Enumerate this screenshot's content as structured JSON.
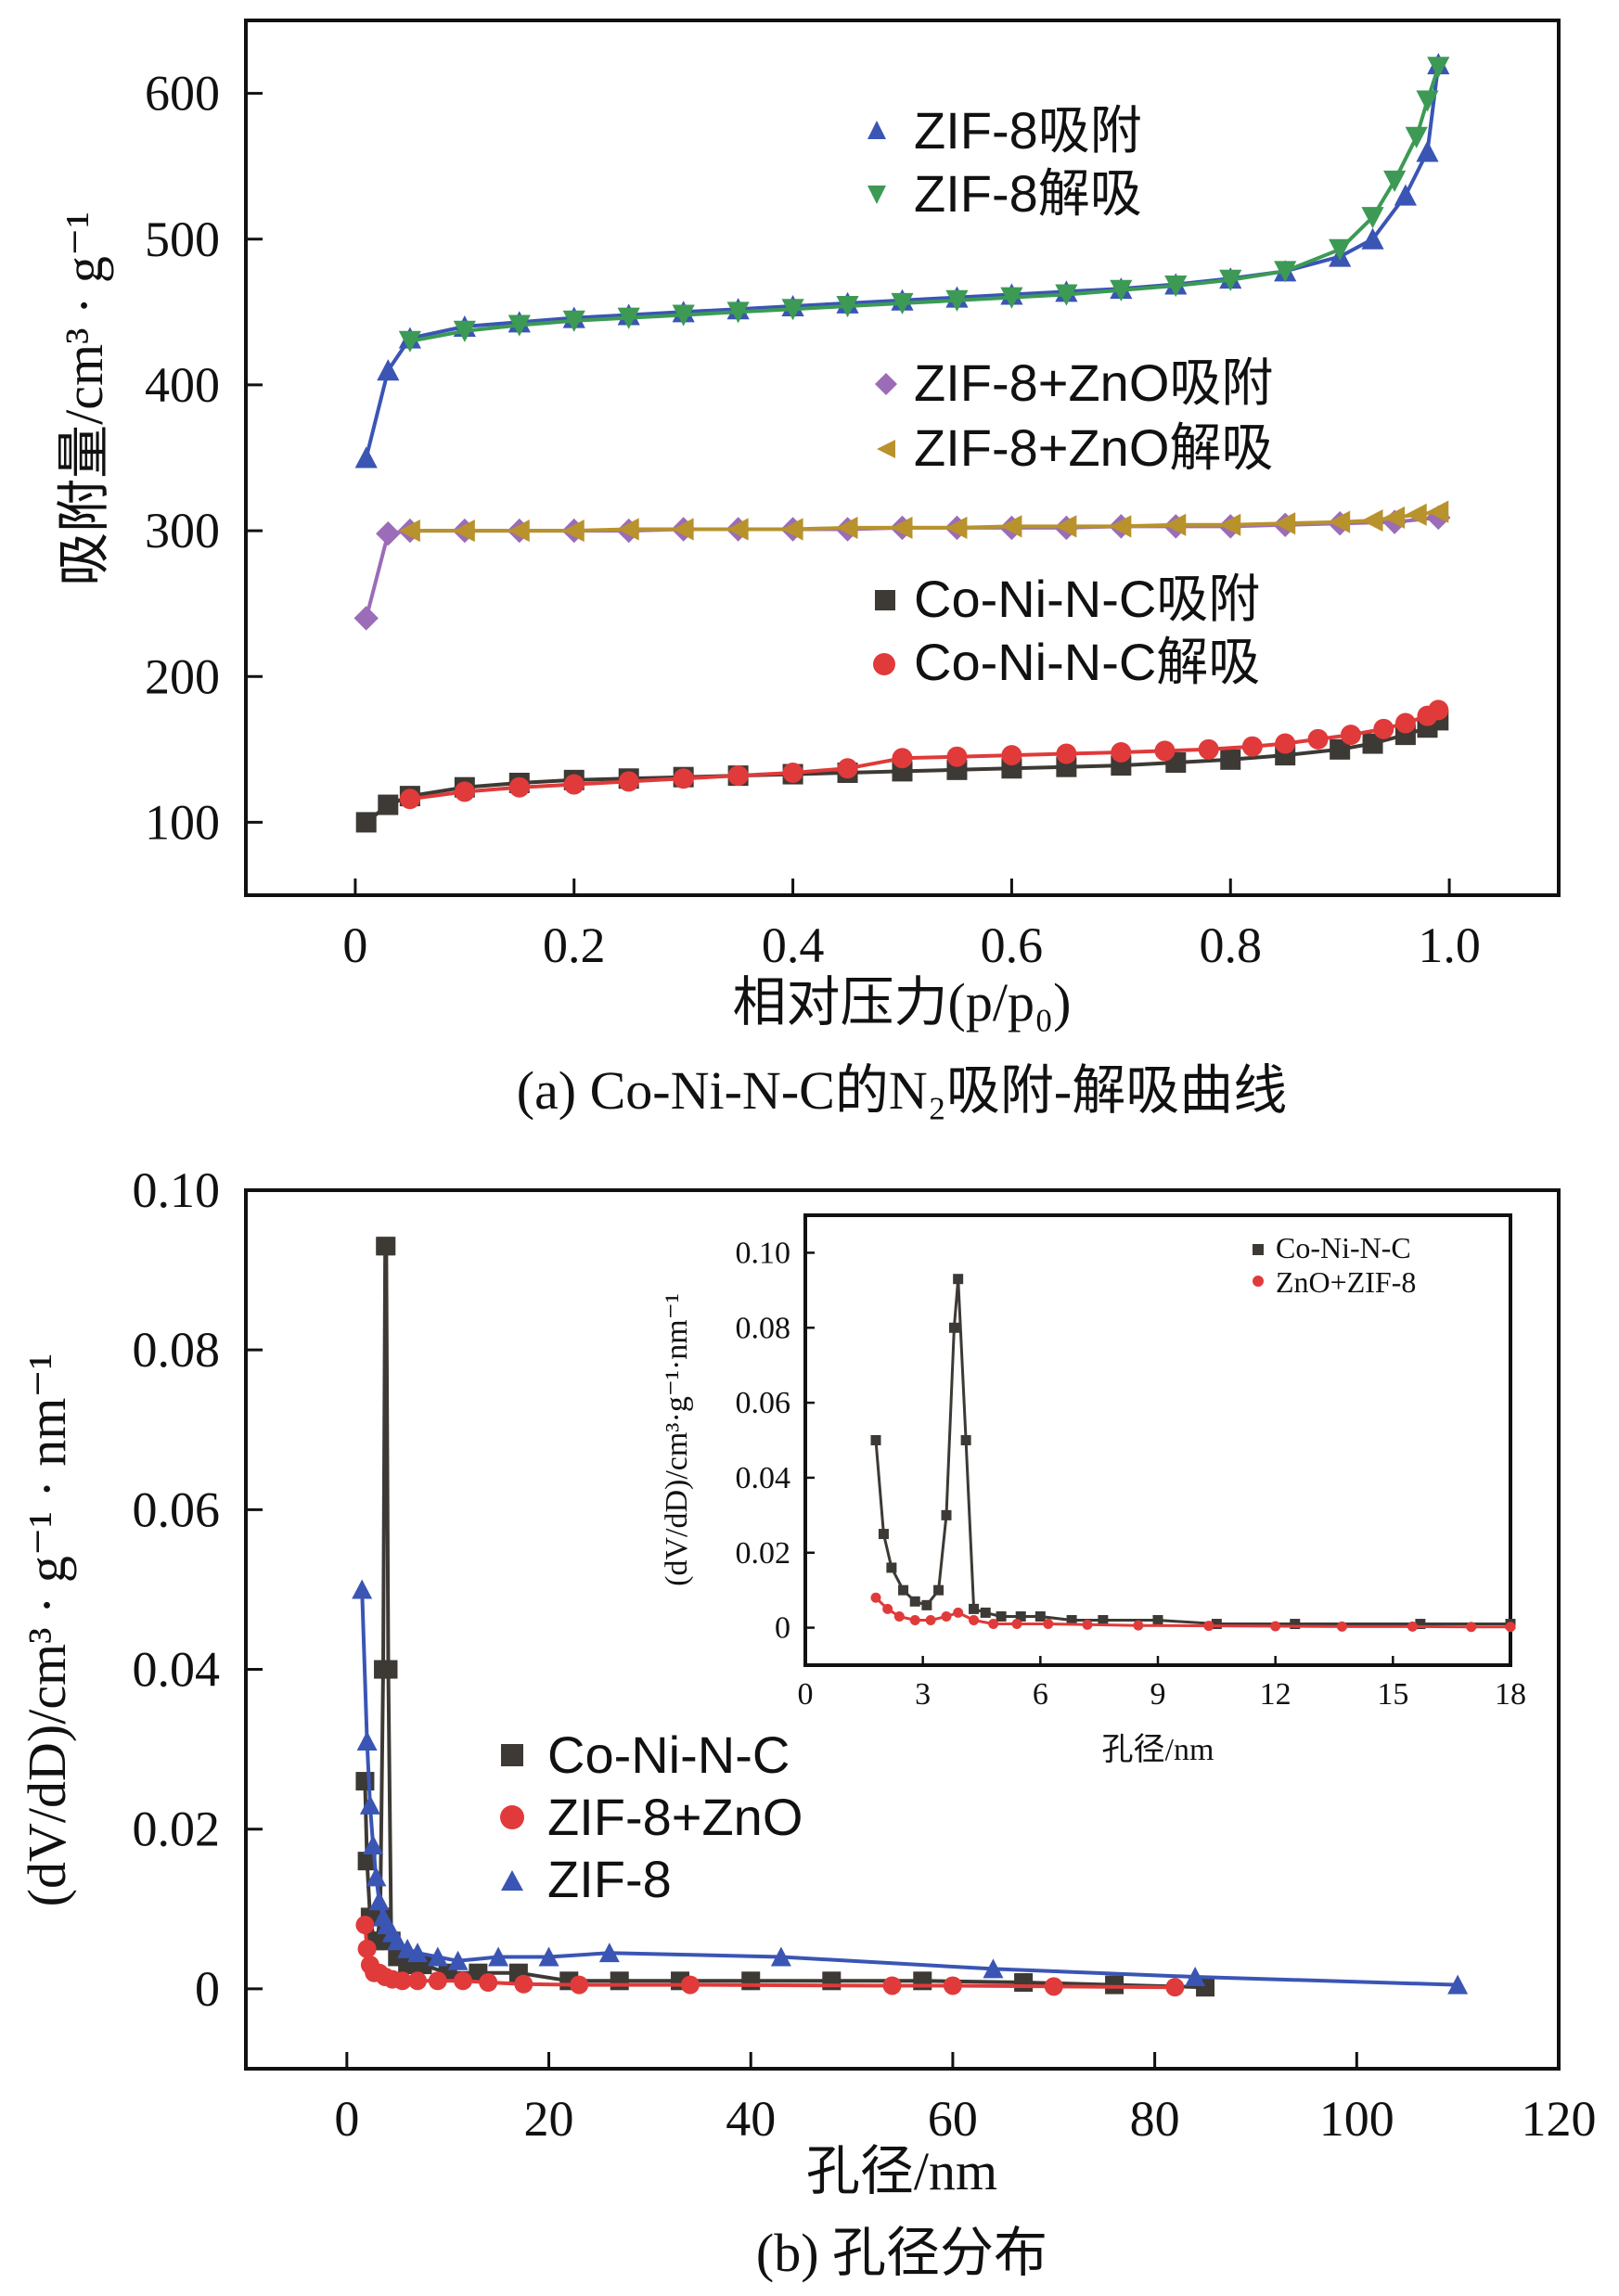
{
  "chart_data": [
    {
      "type": "line",
      "id": "a",
      "caption": "(a) Co-Ni-N-C的N₂吸附-解吸曲线",
      "xlabel": "相对压力(p/p₀)",
      "ylabel": "吸附量/cm³ · g⁻¹",
      "xlim": [
        -0.1,
        1.1
      ],
      "ylim": [
        50,
        650
      ],
      "xticks": [
        0,
        0.2,
        0.4,
        0.6,
        0.8,
        1.0
      ],
      "xtick_labels": [
        "0",
        "0.2",
        "0.4",
        "0.6",
        "0.8",
        "1.0"
      ],
      "yticks": [
        100,
        200,
        300,
        400,
        500,
        600
      ],
      "ytick_labels": [
        "100",
        "200",
        "300",
        "400",
        "500",
        "600"
      ],
      "series": [
        {
          "name": "ZIF-8吸附",
          "color": "#3a55b4",
          "marker": "triangle-up",
          "x": [
            0.01,
            0.03,
            0.05,
            0.1,
            0.15,
            0.2,
            0.25,
            0.3,
            0.35,
            0.4,
            0.45,
            0.5,
            0.55,
            0.6,
            0.65,
            0.7,
            0.75,
            0.8,
            0.85,
            0.9,
            0.93,
            0.96,
            0.98,
            0.99
          ],
          "y": [
            350,
            410,
            432,
            440,
            443,
            446,
            448,
            450,
            452,
            454,
            456,
            458,
            460,
            462,
            464,
            466,
            469,
            473,
            478,
            488,
            500,
            530,
            560,
            620
          ]
        },
        {
          "name": "ZIF-8解吸",
          "color": "#3c9a55",
          "marker": "triangle-down",
          "x": [
            0.99,
            0.98,
            0.97,
            0.95,
            0.93,
            0.9,
            0.85,
            0.8,
            0.75,
            0.7,
            0.65,
            0.6,
            0.55,
            0.5,
            0.45,
            0.4,
            0.35,
            0.3,
            0.25,
            0.2,
            0.15,
            0.1,
            0.05
          ],
          "y": [
            618,
            595,
            570,
            540,
            515,
            493,
            478,
            472,
            468,
            465,
            462,
            460,
            458,
            456,
            454,
            452,
            450,
            448,
            446,
            444,
            441,
            437,
            430
          ]
        },
        {
          "name": "ZIF-8+ZnO吸附",
          "color": "#9b6cb8",
          "marker": "diamond",
          "x": [
            0.01,
            0.03,
            0.05,
            0.1,
            0.15,
            0.2,
            0.25,
            0.3,
            0.35,
            0.4,
            0.45,
            0.5,
            0.55,
            0.6,
            0.65,
            0.7,
            0.75,
            0.8,
            0.85,
            0.9,
            0.95,
            0.99
          ],
          "y": [
            240,
            298,
            300,
            300,
            300,
            300,
            300,
            301,
            301,
            301,
            301,
            302,
            302,
            302,
            302,
            303,
            303,
            303,
            304,
            305,
            306,
            309
          ]
        },
        {
          "name": "ZIF-8+ZnO解吸",
          "color": "#b8922c",
          "marker": "triangle-left",
          "x": [
            0.99,
            0.97,
            0.95,
            0.93,
            0.9,
            0.85,
            0.8,
            0.75,
            0.7,
            0.65,
            0.6,
            0.55,
            0.5,
            0.45,
            0.4,
            0.35,
            0.3,
            0.25,
            0.2,
            0.15,
            0.1,
            0.05
          ],
          "y": [
            313,
            311,
            309,
            307,
            306,
            305,
            304,
            304,
            303,
            303,
            303,
            302,
            302,
            302,
            301,
            301,
            301,
            301,
            300,
            300,
            300,
            300
          ]
        },
        {
          "name": "Co-Ni-N-C吸附",
          "color": "#3d3935",
          "marker": "square",
          "x": [
            0.01,
            0.03,
            0.05,
            0.1,
            0.15,
            0.2,
            0.25,
            0.3,
            0.35,
            0.4,
            0.45,
            0.5,
            0.55,
            0.6,
            0.65,
            0.7,
            0.75,
            0.8,
            0.85,
            0.9,
            0.93,
            0.96,
            0.98,
            0.99
          ],
          "y": [
            100,
            112,
            118,
            124,
            127,
            129,
            130,
            131,
            132,
            133,
            134,
            135,
            136,
            137,
            138,
            139,
            141,
            143,
            146,
            150,
            154,
            160,
            165,
            170
          ]
        },
        {
          "name": "Co-Ni-N-C解吸",
          "color": "#e03a3a",
          "marker": "circle",
          "x": [
            0.99,
            0.98,
            0.96,
            0.94,
            0.91,
            0.88,
            0.85,
            0.82,
            0.78,
            0.74,
            0.7,
            0.65,
            0.6,
            0.55,
            0.5,
            0.45,
            0.4,
            0.35,
            0.3,
            0.25,
            0.2,
            0.15,
            0.1,
            0.05
          ],
          "y": [
            177,
            173,
            168,
            164,
            160,
            157,
            154,
            152,
            150,
            149,
            148,
            147,
            146,
            145,
            144,
            137,
            134,
            132,
            130,
            128,
            126,
            124,
            121,
            116
          ]
        }
      ]
    },
    {
      "type": "line",
      "id": "b",
      "caption": "(b) 孔径分布",
      "xlabel": "孔径/nm",
      "ylabel": "(dV/dD)/cm³ · g⁻¹ · nm⁻¹",
      "xlim": [
        -10,
        120
      ],
      "ylim": [
        -0.01,
        0.1
      ],
      "xticks": [
        0,
        20,
        40,
        60,
        80,
        100,
        120
      ],
      "xtick_labels": [
        "0",
        "20",
        "40",
        "60",
        "80",
        "100",
        "120"
      ],
      "yticks": [
        0,
        0.02,
        0.04,
        0.06,
        0.08,
        0.1
      ],
      "ytick_labels": [
        "0",
        "0.02",
        "0.04",
        "0.06",
        "0.08",
        "0.10"
      ],
      "series": [
        {
          "name": "Co-Ni-N-C",
          "color": "#3d3935",
          "marker": "square",
          "x": [
            1.8,
            2.0,
            2.3,
            2.7,
            3.0,
            3.3,
            3.6,
            3.8,
            3.9,
            4.1,
            4.4,
            5.0,
            6.0,
            7.5,
            10,
            13,
            17,
            22,
            27,
            33,
            40,
            48,
            57,
            67,
            76,
            85
          ],
          "y": [
            0.026,
            0.016,
            0.009,
            0.006,
            0.006,
            0.009,
            0.04,
            0.093,
            0.093,
            0.04,
            0.006,
            0.004,
            0.003,
            0.003,
            0.002,
            0.002,
            0.002,
            0.001,
            0.001,
            0.001,
            0.001,
            0.001,
            0.001,
            0.0008,
            0.0005,
            0.0002
          ]
        },
        {
          "name": "ZIF-8+ZnO",
          "color": "#e03a3a",
          "marker": "circle",
          "x": [
            1.8,
            2.0,
            2.3,
            2.7,
            3.2,
            3.8,
            4.5,
            5.5,
            7,
            9,
            11.5,
            14,
            17.5,
            23,
            34,
            54,
            60,
            70,
            82
          ],
          "y": [
            0.008,
            0.005,
            0.003,
            0.002,
            0.002,
            0.0015,
            0.0012,
            0.001,
            0.001,
            0.001,
            0.001,
            0.0008,
            0.0006,
            0.0005,
            0.0005,
            0.0004,
            0.0004,
            0.0003,
            0.0002
          ]
        },
        {
          "name": "ZIF-8",
          "color": "#3a55b4",
          "marker": "triangle-up",
          "x": [
            1.5,
            2.0,
            2.3,
            2.6,
            2.9,
            3.2,
            3.6,
            4.0,
            4.5,
            5.0,
            6.0,
            7.0,
            9.0,
            11.0,
            15.0,
            20.0,
            26.0,
            43.0,
            64.0,
            84.0,
            110.0
          ],
          "y": [
            0.05,
            0.031,
            0.023,
            0.018,
            0.014,
            0.011,
            0.009,
            0.008,
            0.007,
            0.006,
            0.005,
            0.0045,
            0.004,
            0.0035,
            0.004,
            0.004,
            0.0045,
            0.004,
            0.0025,
            0.0015,
            0.0005
          ]
        }
      ],
      "inset": {
        "xlabel": "孔径/nm",
        "ylabel": "(dV/dD)/cm³·g⁻¹·nm⁻¹",
        "xlim": [
          0,
          18
        ],
        "ylim": [
          -0.01,
          0.11
        ],
        "xticks": [
          0,
          3,
          6,
          9,
          12,
          15,
          18
        ],
        "xtick_labels": [
          "0",
          "3",
          "6",
          "9",
          "12",
          "15",
          "18"
        ],
        "yticks": [
          0,
          0.02,
          0.04,
          0.06,
          0.08,
          0.1
        ],
        "ytick_labels": [
          "0",
          "0.02",
          "0.04",
          "0.06",
          "0.08",
          "0.10"
        ],
        "series": [
          {
            "name": "Co-Ni-N-C",
            "color": "#3d3935",
            "marker": "square",
            "x": [
              1.8,
              2.0,
              2.2,
              2.5,
              2.8,
              3.1,
              3.4,
              3.6,
              3.8,
              3.9,
              4.1,
              4.3,
              4.6,
              5.0,
              5.5,
              6.0,
              6.8,
              7.6,
              9.0,
              10.5,
              12.5,
              15.7,
              18
            ],
            "y": [
              0.05,
              0.025,
              0.016,
              0.01,
              0.007,
              0.006,
              0.01,
              0.03,
              0.08,
              0.093,
              0.05,
              0.005,
              0.004,
              0.003,
              0.003,
              0.003,
              0.002,
              0.002,
              0.002,
              0.001,
              0.001,
              0.001,
              0.001
            ]
          },
          {
            "name": "ZnO+ZIF-8",
            "color": "#e03a3a",
            "marker": "circle",
            "x": [
              1.8,
              2.1,
              2.4,
              2.8,
              3.2,
              3.6,
              3.9,
              4.3,
              4.8,
              5.4,
              6.2,
              7.2,
              8.5,
              10.3,
              12.0,
              13.7,
              15.5,
              17.0,
              18.0
            ],
            "y": [
              0.008,
              0.005,
              0.003,
              0.002,
              0.002,
              0.003,
              0.004,
              0.002,
              0.001,
              0.001,
              0.001,
              0.0008,
              0.0006,
              0.0005,
              0.0004,
              0.0003,
              0.0003,
              0.0002,
              0.0002
            ]
          }
        ]
      }
    }
  ]
}
